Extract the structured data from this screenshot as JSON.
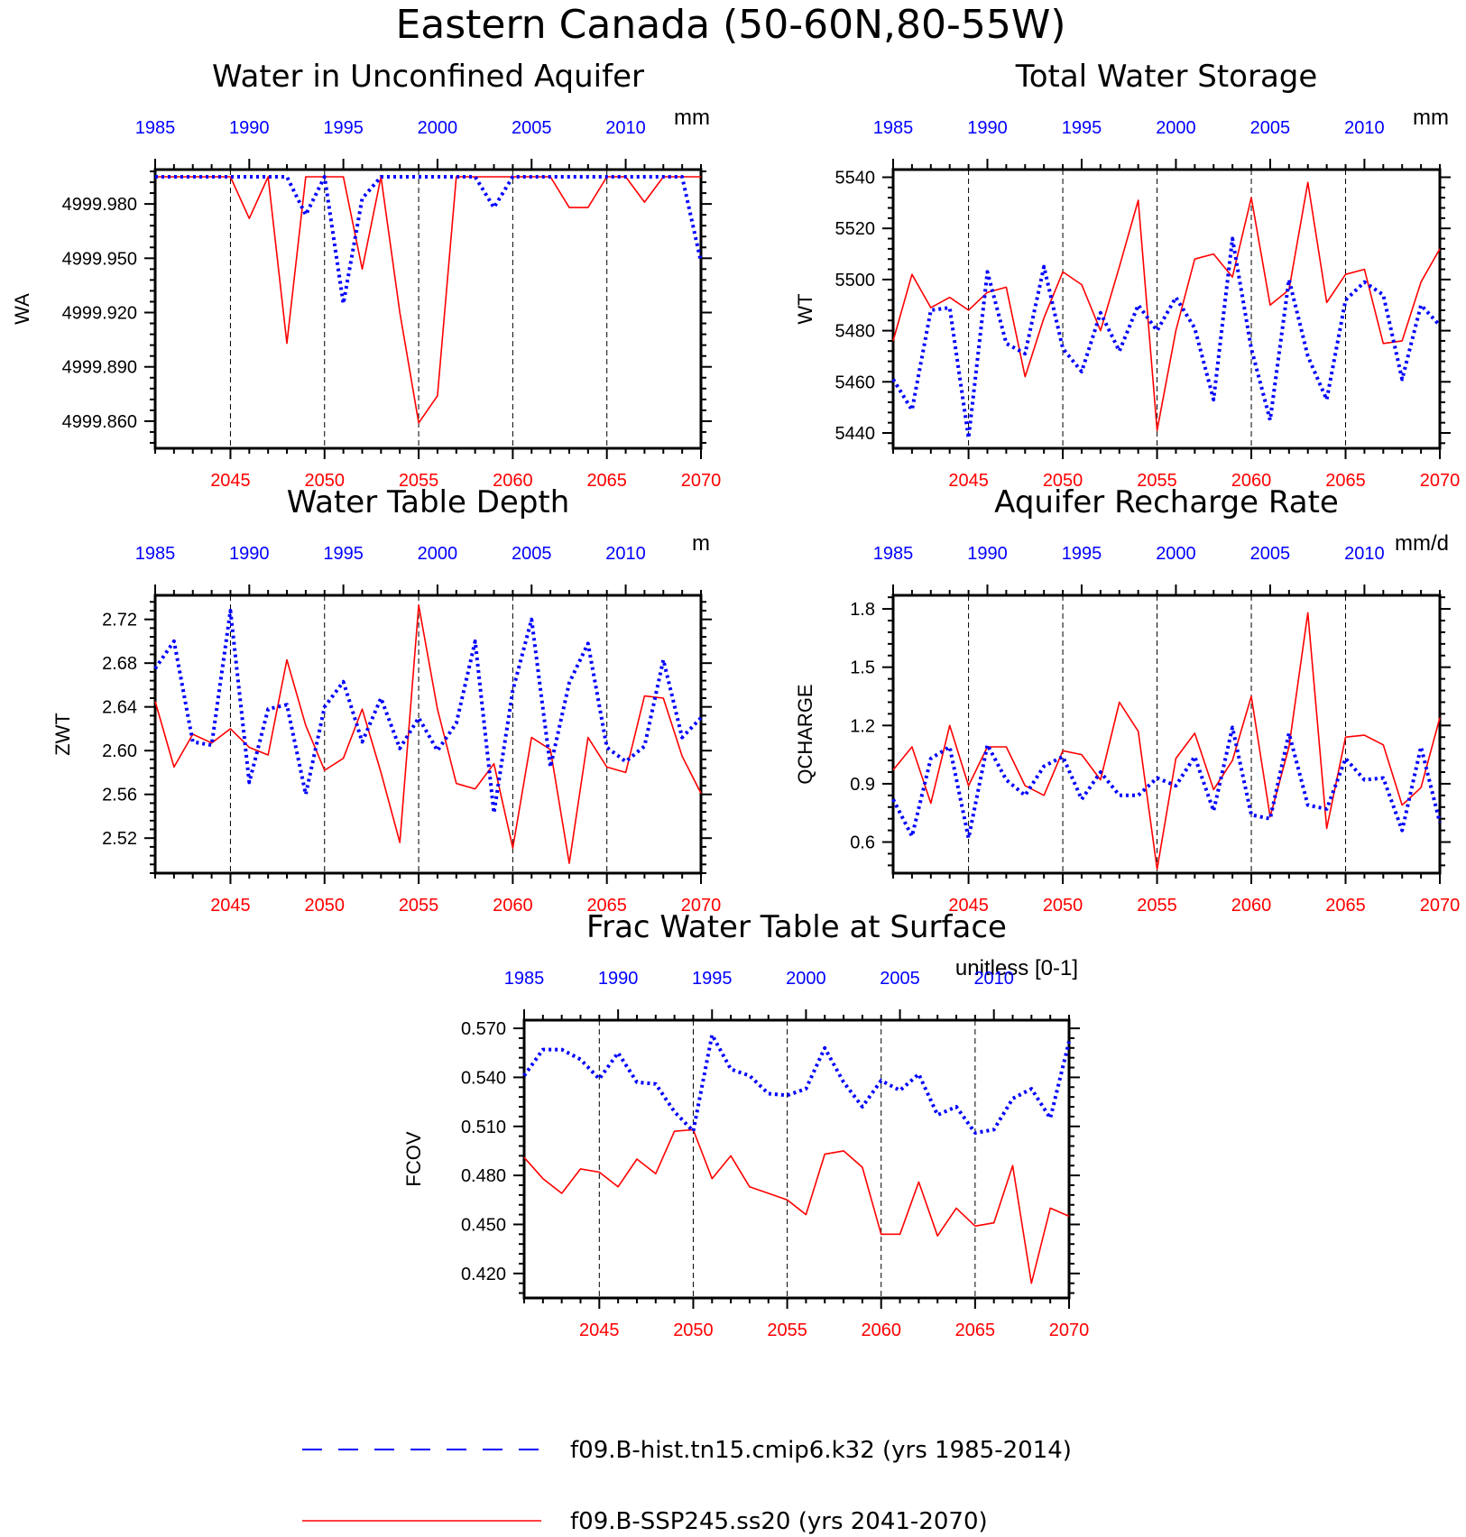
{
  "page_title": "Eastern Canada (50-60N,80-55W)",
  "colors": {
    "hist": "#0000ff",
    "future": "#ff0000",
    "axis": "#000000"
  },
  "legend": [
    {
      "label": "f09.B-hist.tn15.cmip6.k32 (yrs 1985-2014)",
      "style": "dashed",
      "color": "#0000ff"
    },
    {
      "label": "f09.B-SSP245.ss20 (yrs 2041-2070)",
      "style": "solid",
      "color": "#ff0000"
    }
  ],
  "chart_data": [
    {
      "type": "line",
      "title": "Water in Unconfined Aquifer",
      "ylabel": "WA",
      "units": "mm",
      "ylim": [
        4999.845,
        4999.999
      ],
      "yticks": [
        4999.86,
        4999.89,
        4999.92,
        4999.95,
        4999.98
      ],
      "yticklabels": [
        "4999.860",
        "4999.890",
        "4999.920",
        "4999.950",
        "4999.980"
      ],
      "top_axis": {
        "range": [
          1985,
          2014
        ],
        "ticks": [
          1985,
          1990,
          1995,
          2000,
          2005,
          2010
        ]
      },
      "bottom_axis": {
        "range": [
          2041,
          2070
        ],
        "ticks": [
          2045,
          2050,
          2055,
          2060,
          2065,
          2070
        ]
      },
      "grid": "dashed vertical at bottom major ticks",
      "series": [
        {
          "name": "f09.B-hist.tn15.cmip6.k32 (yrs 1985-2014)",
          "axis": "top",
          "x": [
            1985,
            1986,
            1987,
            1988,
            1989,
            1990,
            1991,
            1992,
            1993,
            1994,
            1995,
            1996,
            1997,
            1998,
            1999,
            2000,
            2001,
            2002,
            2003,
            2004,
            2005,
            2006,
            2007,
            2008,
            2009,
            2010,
            2011,
            2012,
            2013,
            2014
          ],
          "y": [
            4999.995,
            4999.995,
            4999.995,
            4999.995,
            4999.995,
            4999.995,
            4999.995,
            4999.995,
            4999.974,
            4999.995,
            4999.925,
            4999.983,
            4999.995,
            4999.995,
            4999.995,
            4999.995,
            4999.995,
            4999.995,
            4999.978,
            4999.995,
            4999.995,
            4999.995,
            4999.995,
            4999.995,
            4999.995,
            4999.995,
            4999.995,
            4999.995,
            4999.995,
            4999.948
          ]
        },
        {
          "name": "f09.B-SSP245.ss20 (yrs 2041-2070)",
          "axis": "bottom",
          "x": [
            2041,
            2042,
            2043,
            2044,
            2045,
            2046,
            2047,
            2048,
            2049,
            2050,
            2051,
            2052,
            2053,
            2054,
            2055,
            2056,
            2057,
            2058,
            2059,
            2060,
            2061,
            2062,
            2063,
            2064,
            2065,
            2066,
            2067,
            2068,
            2069,
            2070
          ],
          "y": [
            4999.995,
            4999.995,
            4999.995,
            4999.995,
            4999.995,
            4999.972,
            4999.995,
            4999.903,
            4999.995,
            4999.995,
            4999.995,
            4999.944,
            4999.995,
            4999.92,
            4999.859,
            4999.874,
            4999.995,
            4999.995,
            4999.995,
            4999.995,
            4999.995,
            4999.995,
            4999.978,
            4999.978,
            4999.995,
            4999.995,
            4999.981,
            4999.995,
            4999.995,
            4999.995
          ]
        }
      ]
    },
    {
      "type": "line",
      "title": "Total Water Storage",
      "ylabel": "WT",
      "units": "mm",
      "ylim": [
        5434,
        5543
      ],
      "yticks": [
        5440,
        5460,
        5480,
        5500,
        5520,
        5540
      ],
      "yticklabels": [
        "5440",
        "5460",
        "5480",
        "5500",
        "5520",
        "5540"
      ],
      "top_axis": {
        "range": [
          1985,
          2014
        ],
        "ticks": [
          1985,
          1990,
          1995,
          2000,
          2005,
          2010
        ]
      },
      "bottom_axis": {
        "range": [
          2041,
          2070
        ],
        "ticks": [
          2045,
          2050,
          2055,
          2060,
          2065,
          2070
        ]
      },
      "grid": "dashed vertical at bottom major ticks",
      "series": [
        {
          "name": "f09.B-hist.tn15.cmip6.k32 (yrs 1985-2014)",
          "axis": "top",
          "x": [
            1985,
            1986,
            1987,
            1988,
            1989,
            1990,
            1991,
            1992,
            1993,
            1994,
            1995,
            1996,
            1997,
            1998,
            1999,
            2000,
            2001,
            2002,
            2003,
            2004,
            2005,
            2006,
            2007,
            2008,
            2009,
            2010,
            2011,
            2012,
            2013,
            2014
          ],
          "y": [
            5461,
            5449,
            5488,
            5489,
            5438,
            5503,
            5475,
            5471,
            5505,
            5473,
            5464,
            5487,
            5472,
            5490,
            5480,
            5493,
            5481,
            5453,
            5516,
            5473,
            5445,
            5500,
            5470,
            5453,
            5492,
            5499,
            5494,
            5461,
            5490,
            5482
          ]
        },
        {
          "name": "f09.B-SSP245.ss20 (yrs 2041-2070)",
          "axis": "bottom",
          "x": [
            2041,
            2042,
            2043,
            2044,
            2045,
            2046,
            2047,
            2048,
            2049,
            2050,
            2051,
            2052,
            2053,
            2054,
            2055,
            2056,
            2057,
            2058,
            2059,
            2060,
            2061,
            2062,
            2063,
            2064,
            2065,
            2066,
            2067,
            2068,
            2069,
            2070
          ],
          "y": [
            5476,
            5502,
            5489,
            5493,
            5488,
            5495,
            5497,
            5462,
            5485,
            5503,
            5498,
            5480,
            5505,
            5531,
            5441,
            5480,
            5508,
            5510,
            5501,
            5532,
            5490,
            5496,
            5538,
            5491,
            5502,
            5504,
            5475,
            5476,
            5499,
            5512
          ]
        }
      ]
    },
    {
      "type": "line",
      "title": "Water Table Depth",
      "ylabel": "ZWT",
      "units": "m",
      "ylim": [
        2.488,
        2.742
      ],
      "yticks": [
        2.52,
        2.56,
        2.6,
        2.64,
        2.68,
        2.72
      ],
      "yticklabels": [
        "2.52",
        "2.56",
        "2.60",
        "2.64",
        "2.68",
        "2.72"
      ],
      "top_axis": {
        "range": [
          1985,
          2014
        ],
        "ticks": [
          1985,
          1990,
          1995,
          2000,
          2005,
          2010
        ]
      },
      "bottom_axis": {
        "range": [
          2041,
          2070
        ],
        "ticks": [
          2045,
          2050,
          2055,
          2060,
          2065,
          2070
        ]
      },
      "grid": "dashed vertical at bottom major ticks",
      "series": [
        {
          "name": "f09.B-hist.tn15.cmip6.k32 (yrs 1985-2014)",
          "axis": "top",
          "x": [
            1985,
            1986,
            1987,
            1988,
            1989,
            1990,
            1991,
            1992,
            1993,
            1994,
            1995,
            1996,
            1997,
            1998,
            1999,
            2000,
            2001,
            2002,
            2003,
            2004,
            2005,
            2006,
            2007,
            2008,
            2009,
            2010,
            2011,
            2012,
            2013,
            2014
          ],
          "y": [
            2.675,
            2.7,
            2.608,
            2.605,
            2.728,
            2.571,
            2.638,
            2.642,
            2.56,
            2.64,
            2.663,
            2.608,
            2.648,
            2.602,
            2.63,
            2.6,
            2.625,
            2.7,
            2.543,
            2.655,
            2.72,
            2.585,
            2.662,
            2.698,
            2.603,
            2.59,
            2.604,
            2.683,
            2.612,
            2.63
          ]
        },
        {
          "name": "f09.B-SSP245.ss20 (yrs 2041-2070)",
          "axis": "bottom",
          "x": [
            2041,
            2042,
            2043,
            2044,
            2045,
            2046,
            2047,
            2048,
            2049,
            2050,
            2051,
            2052,
            2053,
            2054,
            2055,
            2056,
            2057,
            2058,
            2059,
            2060,
            2061,
            2062,
            2063,
            2064,
            2065,
            2066,
            2067,
            2068,
            2069,
            2070
          ],
          "y": [
            2.645,
            2.585,
            2.615,
            2.607,
            2.62,
            2.603,
            2.596,
            2.683,
            2.623,
            2.582,
            2.593,
            2.638,
            2.58,
            2.516,
            2.733,
            2.638,
            2.57,
            2.565,
            2.588,
            2.511,
            2.612,
            2.601,
            2.497,
            2.612,
            2.585,
            2.58,
            2.65,
            2.648,
            2.595,
            2.561
          ]
        }
      ]
    },
    {
      "type": "line",
      "title": "Aquifer Recharge Rate",
      "ylabel": "QCHARGE",
      "units": "mm/d",
      "ylim": [
        0.44,
        1.87
      ],
      "yticks": [
        0.6,
        0.9,
        1.2,
        1.5,
        1.8
      ],
      "yticklabels": [
        "0.6",
        "0.9",
        "1.2",
        "1.5",
        "1.8"
      ],
      "top_axis": {
        "range": [
          1985,
          2014
        ],
        "ticks": [
          1985,
          1990,
          1995,
          2000,
          2005,
          2010
        ]
      },
      "bottom_axis": {
        "range": [
          2041,
          2070
        ],
        "ticks": [
          2045,
          2050,
          2055,
          2060,
          2065,
          2070
        ]
      },
      "grid": "dashed vertical at bottom major ticks",
      "series": [
        {
          "name": "f09.B-hist.tn15.cmip6.k32 (yrs 1985-2014)",
          "axis": "top",
          "x": [
            1985,
            1986,
            1987,
            1988,
            1989,
            1990,
            1991,
            1992,
            1993,
            1994,
            1995,
            1996,
            1997,
            1998,
            1999,
            2000,
            2001,
            2002,
            2003,
            2004,
            2005,
            2006,
            2007,
            2008,
            2009,
            2010,
            2011,
            2012,
            2013,
            2014
          ],
          "y": [
            0.82,
            0.63,
            1.03,
            1.09,
            0.62,
            1.1,
            0.92,
            0.84,
            0.99,
            1.04,
            0.82,
            0.96,
            0.84,
            0.84,
            0.93,
            0.89,
            1.04,
            0.76,
            1.19,
            0.74,
            0.72,
            1.16,
            0.79,
            0.77,
            1.03,
            0.92,
            0.93,
            0.66,
            1.09,
            0.7
          ]
        },
        {
          "name": "f09.B-SSP245.ss20 (yrs 2041-2070)",
          "axis": "bottom",
          "x": [
            2041,
            2042,
            2043,
            2044,
            2045,
            2046,
            2047,
            2048,
            2049,
            2050,
            2051,
            2052,
            2053,
            2054,
            2055,
            2056,
            2057,
            2058,
            2059,
            2060,
            2061,
            2062,
            2063,
            2064,
            2065,
            2066,
            2067,
            2068,
            2069,
            2070
          ],
          "y": [
            0.97,
            1.09,
            0.8,
            1.2,
            0.89,
            1.09,
            1.09,
            0.89,
            0.84,
            1.07,
            1.05,
            0.92,
            1.32,
            1.17,
            0.46,
            1.03,
            1.16,
            0.87,
            1.02,
            1.35,
            0.73,
            1.09,
            1.78,
            0.67,
            1.14,
            1.15,
            1.1,
            0.79,
            0.88,
            1.24
          ]
        }
      ]
    },
    {
      "type": "line",
      "title": "Frac Water Table at Surface",
      "ylabel": "FCOV",
      "units": "unitless [0-1]",
      "ylim": [
        0.405,
        0.575
      ],
      "yticks": [
        0.42,
        0.45,
        0.48,
        0.51,
        0.54,
        0.57
      ],
      "yticklabels": [
        "0.420",
        "0.450",
        "0.480",
        "0.510",
        "0.540",
        "0.570"
      ],
      "top_axis": {
        "range": [
          1985,
          2014
        ],
        "ticks": [
          1985,
          1990,
          1995,
          2000,
          2005,
          2010
        ]
      },
      "bottom_axis": {
        "range": [
          2041,
          2070
        ],
        "ticks": [
          2045,
          2050,
          2055,
          2060,
          2065,
          2070
        ]
      },
      "grid": "dashed vertical at bottom major ticks",
      "series": [
        {
          "name": "f09.B-hist.tn15.cmip6.k32 (yrs 1985-2014)",
          "axis": "top",
          "x": [
            1985,
            1986,
            1987,
            1988,
            1989,
            1990,
            1991,
            1992,
            1993,
            1994,
            1995,
            1996,
            1997,
            1998,
            1999,
            2000,
            2001,
            2002,
            2003,
            2004,
            2005,
            2006,
            2007,
            2008,
            2009,
            2010,
            2011,
            2012,
            2013,
            2014
          ],
          "y": [
            0.541,
            0.557,
            0.557,
            0.551,
            0.539,
            0.555,
            0.537,
            0.536,
            0.519,
            0.507,
            0.566,
            0.545,
            0.541,
            0.53,
            0.529,
            0.533,
            0.558,
            0.537,
            0.522,
            0.538,
            0.532,
            0.542,
            0.517,
            0.522,
            0.506,
            0.508,
            0.527,
            0.533,
            0.515,
            0.562
          ]
        },
        {
          "name": "f09.B-SSP245.ss20 (yrs 2041-2070)",
          "axis": "bottom",
          "x": [
            2041,
            2042,
            2043,
            2044,
            2045,
            2046,
            2047,
            2048,
            2049,
            2050,
            2051,
            2052,
            2053,
            2054,
            2055,
            2056,
            2057,
            2058,
            2059,
            2060,
            2061,
            2062,
            2063,
            2064,
            2065,
            2066,
            2067,
            2068,
            2069,
            2070
          ],
          "y": [
            0.491,
            0.478,
            0.469,
            0.484,
            0.482,
            0.473,
            0.49,
            0.481,
            0.507,
            0.508,
            0.478,
            0.492,
            0.473,
            0.469,
            0.465,
            0.456,
            0.493,
            0.495,
            0.485,
            0.444,
            0.444,
            0.476,
            0.443,
            0.46,
            0.449,
            0.451,
            0.486,
            0.414,
            0.46,
            0.455
          ]
        }
      ]
    }
  ]
}
